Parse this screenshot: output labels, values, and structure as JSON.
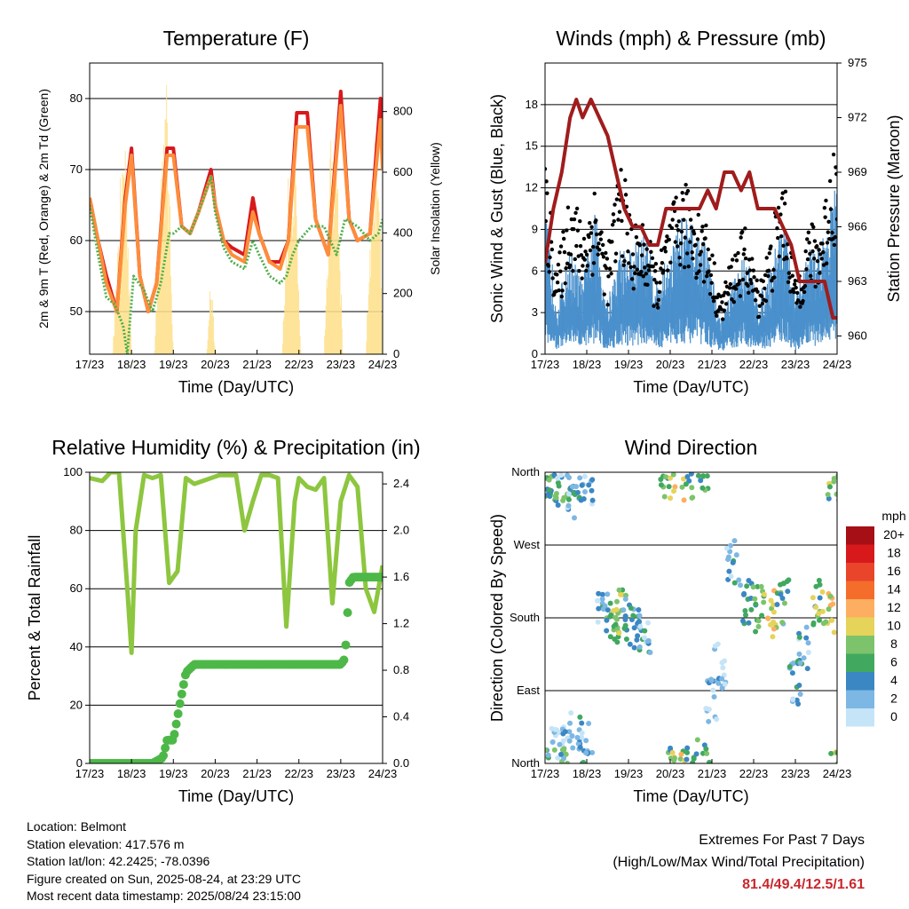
{
  "chart_data": [
    {
      "type": "line",
      "title": "Temperature (F)",
      "xlabel": "Time (Day/UTC)",
      "ylabel": "2m & 9m T (Red, Orange) & 2m Td (Green)",
      "y2label": "Solar Insolation (Yellow)",
      "x_ticks": [
        "17/23",
        "18/23",
        "19/23",
        "20/23",
        "21/23",
        "22/23",
        "23/23",
        "24/23"
      ],
      "ylim": [
        44,
        85
      ],
      "y_ticks": [
        50,
        60,
        70,
        80
      ],
      "y2lim": [
        0,
        960
      ],
      "y2_ticks": [
        0,
        200,
        400,
        600,
        800
      ],
      "grid": true,
      "series": [
        {
          "color": "#d7191c",
          "x": [
            0,
            0.2,
            0.4,
            0.65,
            0.85,
            1.0,
            1.2,
            1.4,
            1.6,
            1.85,
            2.0,
            2.2,
            2.4,
            2.6,
            2.9,
            3.0,
            3.2,
            3.4,
            3.7,
            3.9,
            4.05,
            4.3,
            4.55,
            4.75,
            4.95,
            5.2,
            5.4,
            5.7,
            6.0,
            6.2,
            6.4,
            6.7,
            6.95,
            7.0
          ],
          "values": [
            66,
            60,
            55,
            50,
            66,
            73,
            55,
            50,
            54,
            73,
            73,
            62,
            61,
            64,
            70,
            65,
            60,
            59,
            58,
            66,
            61,
            57,
            57,
            60,
            78,
            78,
            63,
            58,
            81,
            63,
            60,
            61,
            80,
            71
          ]
        },
        {
          "color": "#fd8d3c",
          "x": [
            0,
            0.2,
            0.4,
            0.65,
            0.85,
            1.0,
            1.2,
            1.4,
            1.6,
            1.85,
            2.0,
            2.2,
            2.4,
            2.6,
            2.9,
            3.0,
            3.2,
            3.4,
            3.7,
            3.9,
            4.05,
            4.3,
            4.55,
            4.75,
            4.95,
            5.2,
            5.4,
            5.7,
            6.0,
            6.2,
            6.4,
            6.7,
            6.95,
            7.0
          ],
          "values": [
            66,
            60,
            54,
            50,
            65,
            72,
            55,
            50,
            54,
            72,
            72,
            62,
            61,
            64,
            69,
            65,
            60,
            58,
            57,
            64,
            61,
            57,
            56,
            60,
            76,
            76,
            63,
            58,
            79,
            63,
            60,
            61,
            77,
            70
          ]
        },
        {
          "color": "#4daf4a",
          "x": [
            0,
            0.2,
            0.4,
            0.6,
            0.8,
            0.9,
            1.05,
            1.3,
            1.5,
            1.7,
            1.9,
            2.0,
            2.2,
            2.4,
            2.6,
            2.9,
            3.0,
            3.2,
            3.4,
            3.7,
            3.9,
            4.05,
            4.3,
            4.55,
            4.7,
            4.85,
            5.0,
            5.3,
            5.6,
            5.75,
            5.9,
            6.1,
            6.4,
            6.7,
            6.9,
            7.0
          ],
          "values": [
            65,
            58,
            52,
            51,
            48,
            44,
            55,
            53,
            50,
            54,
            61,
            61,
            62,
            61,
            64,
            69,
            64,
            59,
            57,
            56,
            60,
            58,
            55,
            54,
            55,
            58,
            60,
            62,
            62,
            60,
            58,
            63,
            62,
            60,
            61,
            63
          ]
        }
      ],
      "solar_series": {
        "color": "#fee08b",
        "x": [
          0.55,
          0.7,
          0.85,
          1.0,
          1.55,
          1.7,
          1.85,
          2.0,
          2.8,
          2.9,
          3.0,
          4.6,
          4.75,
          4.9,
          5.05,
          5.6,
          5.75,
          5.9,
          6.05,
          6.6,
          6.75,
          6.9,
          7.0
        ],
        "values": [
          0,
          500,
          850,
          0,
          0,
          700,
          940,
          0,
          0,
          300,
          0,
          0,
          650,
          800,
          0,
          0,
          700,
          850,
          0,
          0,
          650,
          830,
          0
        ]
      }
    },
    {
      "type": "line",
      "title": "Winds (mph) & Pressure (mb)",
      "xlabel": "Time (Day/UTC)",
      "ylabel": "Sonic Wind & Gust (Blue, Black)",
      "y2label": "Station Pressure (Maroon)",
      "x_ticks": [
        "17/23",
        "18/23",
        "19/23",
        "20/23",
        "21/23",
        "22/23",
        "23/23",
        "24/23"
      ],
      "ylim": [
        0,
        21
      ],
      "y_ticks": [
        0,
        3,
        6,
        9,
        12,
        15,
        18
      ],
      "y2lim": [
        959,
        975
      ],
      "y2_ticks": [
        960,
        963,
        966,
        969,
        972,
        975
      ],
      "grid": true,
      "series": [
        {
          "name": "",
          "color": "#4a90cc",
          "x": [
            0,
            0.3,
            0.6,
            0.9,
            1.2,
            1.5,
            1.8,
            2.1,
            2.4,
            2.7,
            3.0,
            3.3,
            3.6,
            3.9,
            4.2,
            4.5,
            4.8,
            5.1,
            5.4,
            5.7,
            6.0,
            6.3,
            6.6,
            6.9,
            7.0
          ],
          "values": [
            8,
            3,
            6,
            4,
            8,
            3,
            6,
            6,
            7,
            4,
            6,
            8,
            7,
            6,
            2,
            4,
            6,
            3,
            5,
            8,
            3,
            6,
            6,
            9,
            10
          ]
        },
        {
          "name": "",
          "color": "#000000",
          "x": [
            0,
            0.3,
            0.6,
            0.9,
            1.2,
            1.5,
            1.8,
            2.1,
            2.4,
            2.7,
            3.0,
            3.3,
            3.6,
            3.9,
            4.2,
            4.5,
            4.8,
            5.1,
            5.4,
            5.7,
            6.0,
            6.3,
            6.6,
            6.9,
            7.0
          ],
          "values": [
            13,
            6,
            12,
            9,
            12,
            7,
            14,
            9,
            9,
            6,
            10,
            12,
            11,
            9,
            4,
            7,
            9,
            5,
            8,
            13,
            5,
            9,
            9,
            15,
            14
          ]
        },
        {
          "name": "",
          "color": "#a01c1c",
          "x": [
            0,
            0.2,
            0.4,
            0.6,
            0.75,
            0.9,
            1.1,
            1.3,
            1.5,
            1.7,
            1.9,
            2.1,
            2.3,
            2.5,
            2.7,
            2.9,
            3.1,
            3.3,
            3.5,
            3.7,
            3.9,
            4.1,
            4.3,
            4.5,
            4.7,
            4.9,
            5.1,
            5.3,
            5.5,
            5.7,
            5.9,
            6.1,
            6.3,
            6.5,
            6.7,
            6.9,
            7.0
          ],
          "values": [
            964,
            967,
            969,
            972,
            973,
            972,
            973,
            972,
            971,
            969,
            967,
            966,
            966,
            965,
            965,
            967,
            967,
            967,
            967,
            967,
            968,
            967,
            969,
            969,
            968,
            969,
            967,
            967,
            967,
            966,
            965,
            963,
            963,
            963,
            963,
            961,
            961
          ]
        }
      ]
    },
    {
      "type": "line",
      "title": "Relative Humidity (%) & Precipitation (in)",
      "xlabel": "Time (Day/UTC)",
      "ylabel": "Percent & Total Rainfall",
      "x_ticks": [
        "17/23",
        "18/23",
        "19/23",
        "20/23",
        "21/23",
        "22/23",
        "23/23",
        "24/23"
      ],
      "ylim": [
        0,
        100
      ],
      "y_ticks": [
        0,
        20,
        40,
        60,
        80,
        100
      ],
      "y2lim": [
        0,
        2.5
      ],
      "y2_ticks": [
        "0.0",
        "0.4",
        "0.8",
        "1.2",
        "1.6",
        "2.0",
        "2.4"
      ],
      "grid": true,
      "series": [
        {
          "name": "",
          "color": "#8dc63f",
          "x": [
            0,
            0.3,
            0.5,
            0.7,
            0.9,
            1.0,
            1.1,
            1.3,
            1.5,
            1.7,
            1.9,
            2.1,
            2.3,
            2.5,
            2.7,
            2.9,
            3.1,
            3.3,
            3.5,
            3.7,
            3.9,
            4.1,
            4.3,
            4.5,
            4.7,
            4.9,
            5.0,
            5.2,
            5.4,
            5.6,
            5.8,
            6.0,
            6.2,
            6.4,
            6.6,
            6.8,
            7.0
          ],
          "values": [
            98,
            97,
            100,
            100,
            60,
            38,
            80,
            99,
            98,
            99,
            62,
            66,
            98,
            96,
            97,
            98,
            99,
            99,
            99,
            80,
            90,
            99,
            99,
            98,
            47,
            90,
            98,
            95,
            94,
            98,
            55,
            90,
            99,
            95,
            60,
            52,
            68
          ]
        },
        {
          "name": "",
          "color": "#4db848",
          "x": [
            0,
            1.5,
            1.75,
            1.85,
            2.0,
            2.15,
            2.3,
            2.5,
            2.8,
            3.5,
            4.5,
            5.5,
            6.0,
            6.1,
            6.15,
            6.2,
            6.3,
            6.5,
            7.0
          ],
          "values": [
            0,
            0,
            0.05,
            0.2,
            0.2,
            0.5,
            0.78,
            0.85,
            0.85,
            0.85,
            0.85,
            0.85,
            0.85,
            0.9,
            1.2,
            1.55,
            1.6,
            1.6,
            1.6
          ]
        }
      ]
    },
    {
      "type": "scatter",
      "title": "Wind Direction",
      "xlabel": "Time (Day/UTC)",
      "ylabel": "Direction (Colored By Speed)",
      "x_ticks": [
        "17/23",
        "18/23",
        "19/23",
        "20/23",
        "21/23",
        "22/23",
        "23/23",
        "24/23"
      ],
      "y_ticks": [
        "North",
        "East",
        "South",
        "West",
        "North"
      ],
      "ylim": [
        0,
        360
      ],
      "grid": true,
      "colorbar": {
        "unit": "mph",
        "labels": [
          "20+",
          "18",
          "16",
          "14",
          "12",
          "10",
          "8",
          "6",
          "4",
          "2",
          "0"
        ],
        "colors": [
          "#a50f15",
          "#d7191c",
          "#e8452b",
          "#f46d2b",
          "#fdae61",
          "#e6d35a",
          "#7cc36b",
          "#41a85f",
          "#3b87c4",
          "#7db7e3",
          "#c6e4f7"
        ]
      },
      "clusters": [
        {
          "x": 0.1,
          "dir": 355,
          "speed": 7
        },
        {
          "x": 0.2,
          "dir": 345,
          "speed": 6
        },
        {
          "x": 0.4,
          "dir": 350,
          "speed": 8
        },
        {
          "x": 0.6,
          "dir": 330,
          "speed": 4
        },
        {
          "x": 0.8,
          "dir": 355,
          "speed": 5
        },
        {
          "x": 1.0,
          "dir": 350,
          "speed": 4
        },
        {
          "x": 0.3,
          "dir": 20,
          "speed": 2
        },
        {
          "x": 0.5,
          "dir": 40,
          "speed": 2
        },
        {
          "x": 0.9,
          "dir": 30,
          "speed": 4
        },
        {
          "x": 1.6,
          "dir": 180,
          "speed": 8
        },
        {
          "x": 1.8,
          "dir": 185,
          "speed": 10
        },
        {
          "x": 2.0,
          "dir": 175,
          "speed": 6
        },
        {
          "x": 2.2,
          "dir": 170,
          "speed": 4
        },
        {
          "x": 2.4,
          "dir": 160,
          "speed": 4
        },
        {
          "x": 1.4,
          "dir": 190,
          "speed": 4
        },
        {
          "x": 2.9,
          "dir": 350,
          "speed": 8
        },
        {
          "x": 3.2,
          "dir": 355,
          "speed": 10
        },
        {
          "x": 3.5,
          "dir": 350,
          "speed": 7
        },
        {
          "x": 3.8,
          "dir": 5,
          "speed": 6
        },
        {
          "x": 4.0,
          "dir": 80,
          "speed": 2
        },
        {
          "x": 4.2,
          "dir": 120,
          "speed": 3
        },
        {
          "x": 4.5,
          "dir": 250,
          "speed": 4
        },
        {
          "x": 4.8,
          "dir": 200,
          "speed": 6
        },
        {
          "x": 5.1,
          "dir": 190,
          "speed": 8
        },
        {
          "x": 5.4,
          "dir": 185,
          "speed": 10
        },
        {
          "x": 5.7,
          "dir": 200,
          "speed": 6
        },
        {
          "x": 6.0,
          "dir": 100,
          "speed": 4
        },
        {
          "x": 6.2,
          "dir": 140,
          "speed": 4
        },
        {
          "x": 6.5,
          "dir": 200,
          "speed": 8
        },
        {
          "x": 6.8,
          "dir": 190,
          "speed": 11
        },
        {
          "x": 6.9,
          "dir": 350,
          "speed": 8
        }
      ]
    }
  ],
  "info": {
    "location": "Location: Belmont",
    "elevation": "Station elevation: 417.576 m",
    "latlon": "Station lat/lon: 42.2425; -78.0396",
    "created": "Figure created on Sun, 2025-08-24, at 23:29 UTC",
    "recent": "Most recent data timestamp: 2025/08/24 23:15:00"
  },
  "extremes": {
    "line1": "Extremes For Past 7 Days",
    "line2": "(High/Low/Max Wind/Total Precipitation)",
    "values": "81.4/49.4/12.5/1.61"
  }
}
